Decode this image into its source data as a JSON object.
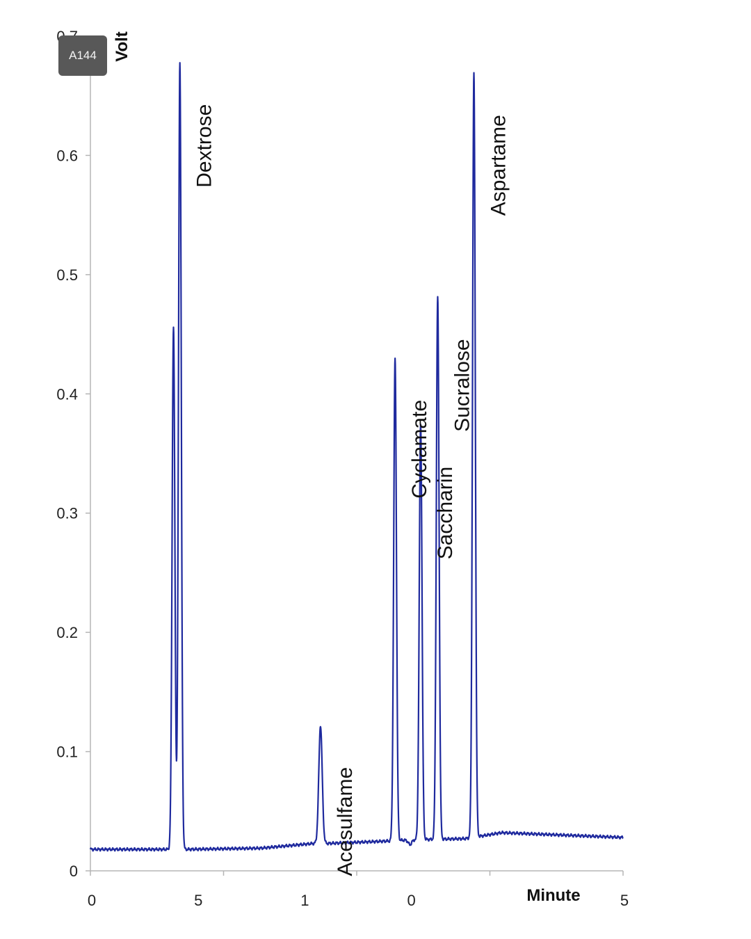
{
  "badge": {
    "text": "A144"
  },
  "chart_data": {
    "type": "line",
    "title": "",
    "ylabel": "Volt",
    "xlabel": "Minute",
    "ylim": [
      0,
      0.7
    ],
    "yticks": [
      "0",
      "0.1",
      "0.2",
      "0.3",
      "0.4",
      "0.5",
      "0.6",
      "0.7"
    ],
    "xticks": [
      "0",
      "5",
      "1",
      "0",
      "5"
    ],
    "xlim": [
      0,
      25
    ],
    "grid": false,
    "line_color": "#1f2a9e",
    "peaks": [
      {
        "label": "",
        "x": 3.9,
        "y": 0.456
      },
      {
        "label": "Dextrose",
        "x": 4.2,
        "y": 0.678
      },
      {
        "label": "Acesulfame",
        "x": 10.8,
        "y": 0.122
      },
      {
        "label": "Cyclamate",
        "x": 14.3,
        "y": 0.43
      },
      {
        "label": "Saccharin",
        "x": 15.5,
        "y": 0.374
      },
      {
        "label": "Sucralose",
        "x": 16.3,
        "y": 0.481
      },
      {
        "label": "Aspartame",
        "x": 18.0,
        "y": 0.669
      }
    ],
    "baseline": [
      {
        "x": 0,
        "y": 0.018
      },
      {
        "x": 3.7,
        "y": 0.018
      },
      {
        "x": 4.5,
        "y": 0.018
      },
      {
        "x": 8.0,
        "y": 0.019
      },
      {
        "x": 10.5,
        "y": 0.023
      },
      {
        "x": 11.2,
        "y": 0.023
      },
      {
        "x": 14.0,
        "y": 0.025
      },
      {
        "x": 15.0,
        "y": 0.026
      },
      {
        "x": 17.6,
        "y": 0.027
      },
      {
        "x": 19.3,
        "y": 0.032
      },
      {
        "x": 25,
        "y": 0.028
      }
    ]
  }
}
